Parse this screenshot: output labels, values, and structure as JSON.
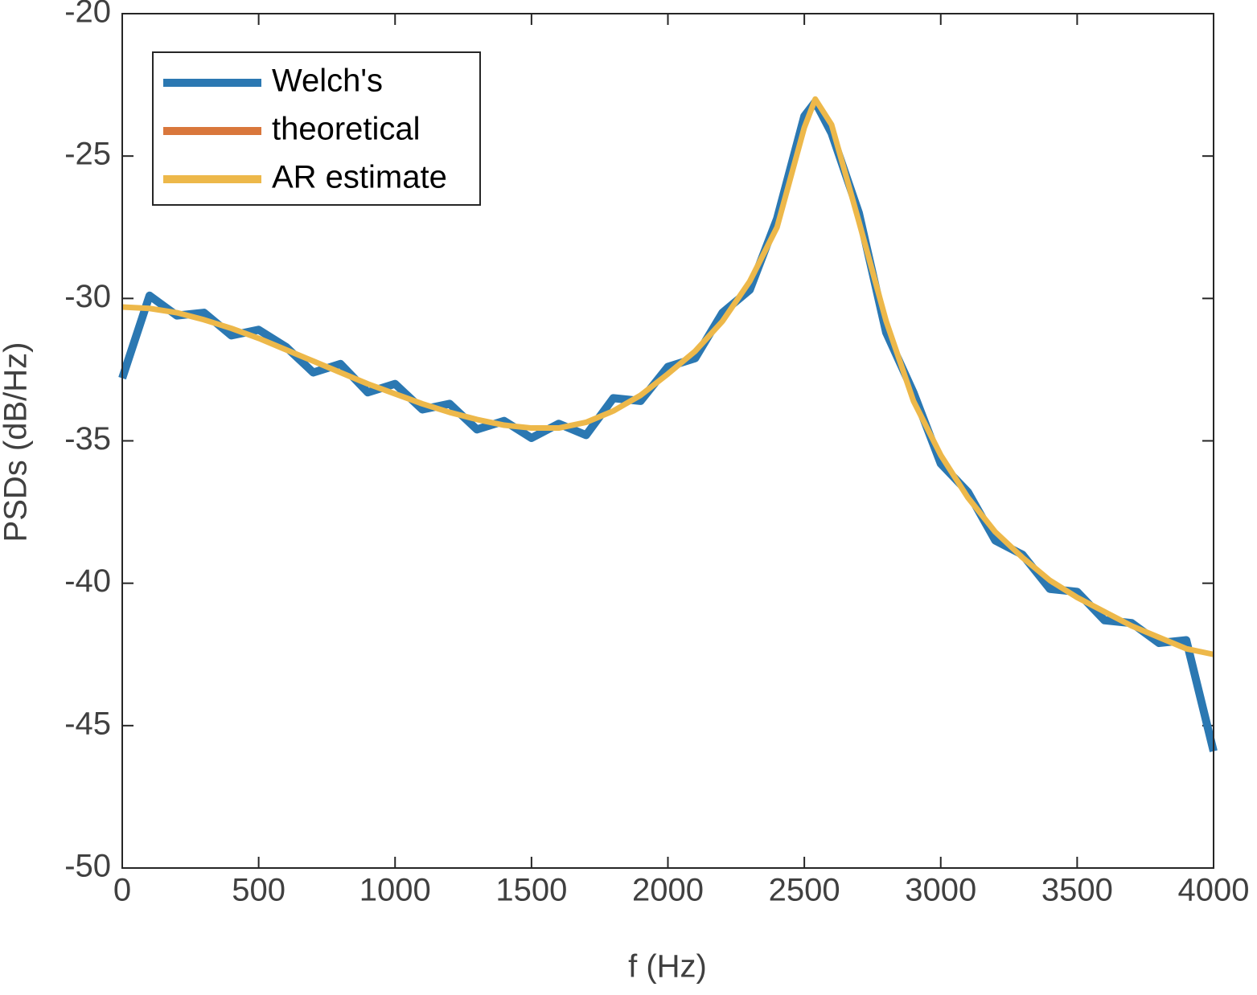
{
  "chart_data": {
    "type": "line",
    "xlabel": "f (Hz)",
    "ylabel": "PSDs (dB/Hz)",
    "x": [
      0,
      100,
      200,
      300,
      400,
      500,
      600,
      700,
      800,
      900,
      1000,
      1100,
      1200,
      1300,
      1400,
      1500,
      1600,
      1700,
      1800,
      1900,
      2000,
      2100,
      2200,
      2300,
      2400,
      2500,
      2540,
      2600,
      2700,
      2800,
      2900,
      3000,
      3100,
      3200,
      3300,
      3400,
      3500,
      3600,
      3700,
      3800,
      3900,
      4000
    ],
    "series": [
      {
        "name": "Welch's",
        "color": "#2b78b2",
        "values": [
          -32.8,
          -29.9,
          -30.6,
          -30.5,
          -31.3,
          -31.1,
          -31.7,
          -32.6,
          -32.3,
          -33.3,
          -33.0,
          -33.9,
          -33.7,
          -34.6,
          -34.3,
          -34.9,
          -34.4,
          -34.8,
          -33.5,
          -33.6,
          -32.4,
          -32.1,
          -30.5,
          -29.7,
          -27.2,
          -23.6,
          -23.1,
          -24.2,
          -27.0,
          -31.2,
          -33.3,
          -35.8,
          -36.8,
          -38.5,
          -39.0,
          -40.2,
          -40.3,
          -41.3,
          -41.4,
          -42.1,
          -42.0,
          -45.9
        ]
      },
      {
        "name": "theoretical",
        "color": "#d9773c",
        "values": [
          -30.3,
          -30.35,
          -30.5,
          -30.75,
          -31.05,
          -31.4,
          -31.8,
          -32.2,
          -32.6,
          -33.0,
          -33.35,
          -33.7,
          -34.0,
          -34.25,
          -34.45,
          -34.55,
          -34.55,
          -34.35,
          -33.95,
          -33.4,
          -32.65,
          -31.85,
          -30.8,
          -29.4,
          -27.5,
          -24.0,
          -23.0,
          -23.9,
          -27.3,
          -30.8,
          -33.6,
          -35.5,
          -37.0,
          -38.2,
          -39.1,
          -39.9,
          -40.5,
          -41.0,
          -41.5,
          -41.9,
          -42.3,
          -42.5
        ]
      },
      {
        "name": "AR estimate",
        "color": "#edb84a",
        "values": [
          -30.3,
          -30.35,
          -30.5,
          -30.75,
          -31.05,
          -31.4,
          -31.8,
          -32.2,
          -32.6,
          -33.0,
          -33.35,
          -33.7,
          -34.0,
          -34.25,
          -34.45,
          -34.55,
          -34.55,
          -34.35,
          -33.95,
          -33.4,
          -32.65,
          -31.85,
          -30.8,
          -29.4,
          -27.5,
          -24.0,
          -23.0,
          -23.9,
          -27.3,
          -30.8,
          -33.6,
          -35.5,
          -37.0,
          -38.2,
          -39.1,
          -39.9,
          -40.5,
          -41.0,
          -41.5,
          -41.9,
          -42.3,
          -42.5
        ]
      }
    ],
    "xlim": [
      0,
      4000
    ],
    "xticks": [
      0,
      500,
      1000,
      1500,
      2000,
      2500,
      3000,
      3500,
      4000
    ],
    "ylim": [
      -50,
      -20
    ],
    "yticks": [
      -50,
      -45,
      -40,
      -35,
      -30,
      -25,
      -20
    ],
    "legend": "upper-left",
    "grid": false
  }
}
